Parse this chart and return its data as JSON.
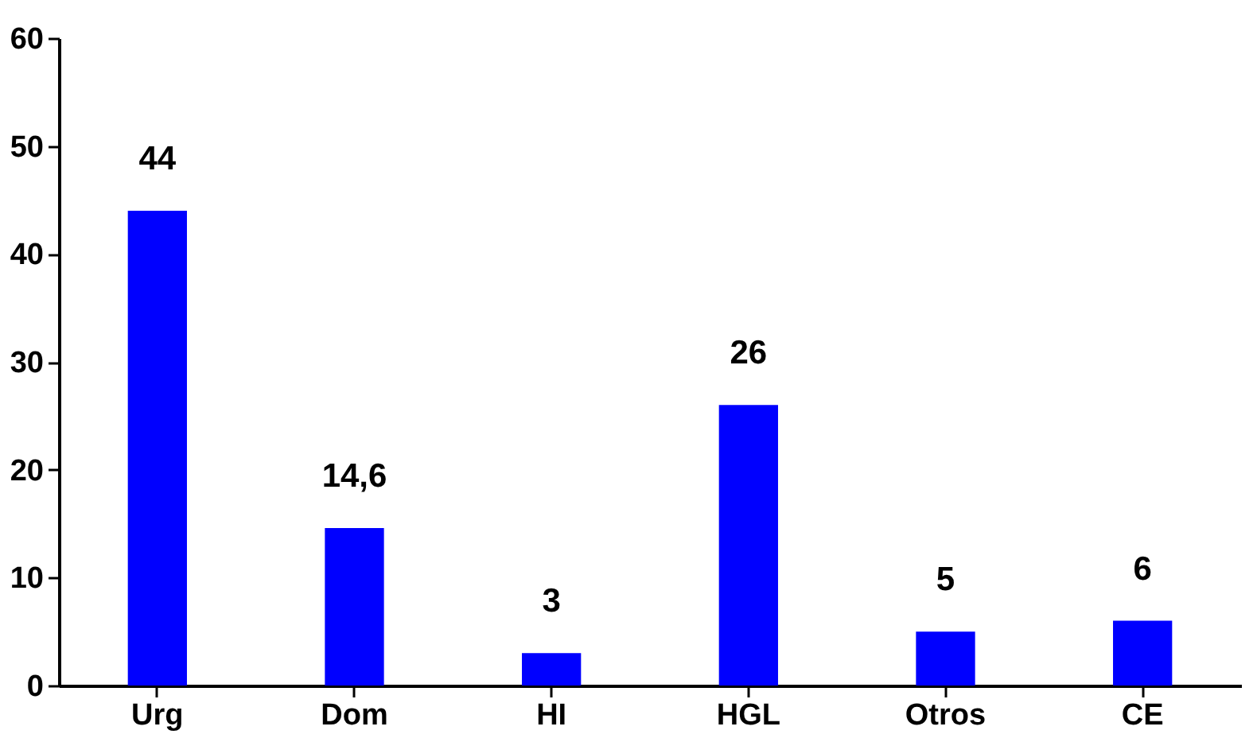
{
  "chart_data": {
    "type": "bar",
    "categories": [
      "Urg",
      "Dom",
      "HI",
      "HGL",
      "Otros",
      "CE"
    ],
    "values": [
      44,
      14.6,
      3,
      26,
      5,
      6
    ],
    "value_labels": [
      "44",
      "14,6",
      "3",
      "26",
      "5",
      "6"
    ],
    "color": "#0000ff",
    "ylim": [
      0,
      60
    ],
    "yticks": [
      0,
      10,
      20,
      30,
      40,
      50,
      60
    ],
    "grid": false
  }
}
